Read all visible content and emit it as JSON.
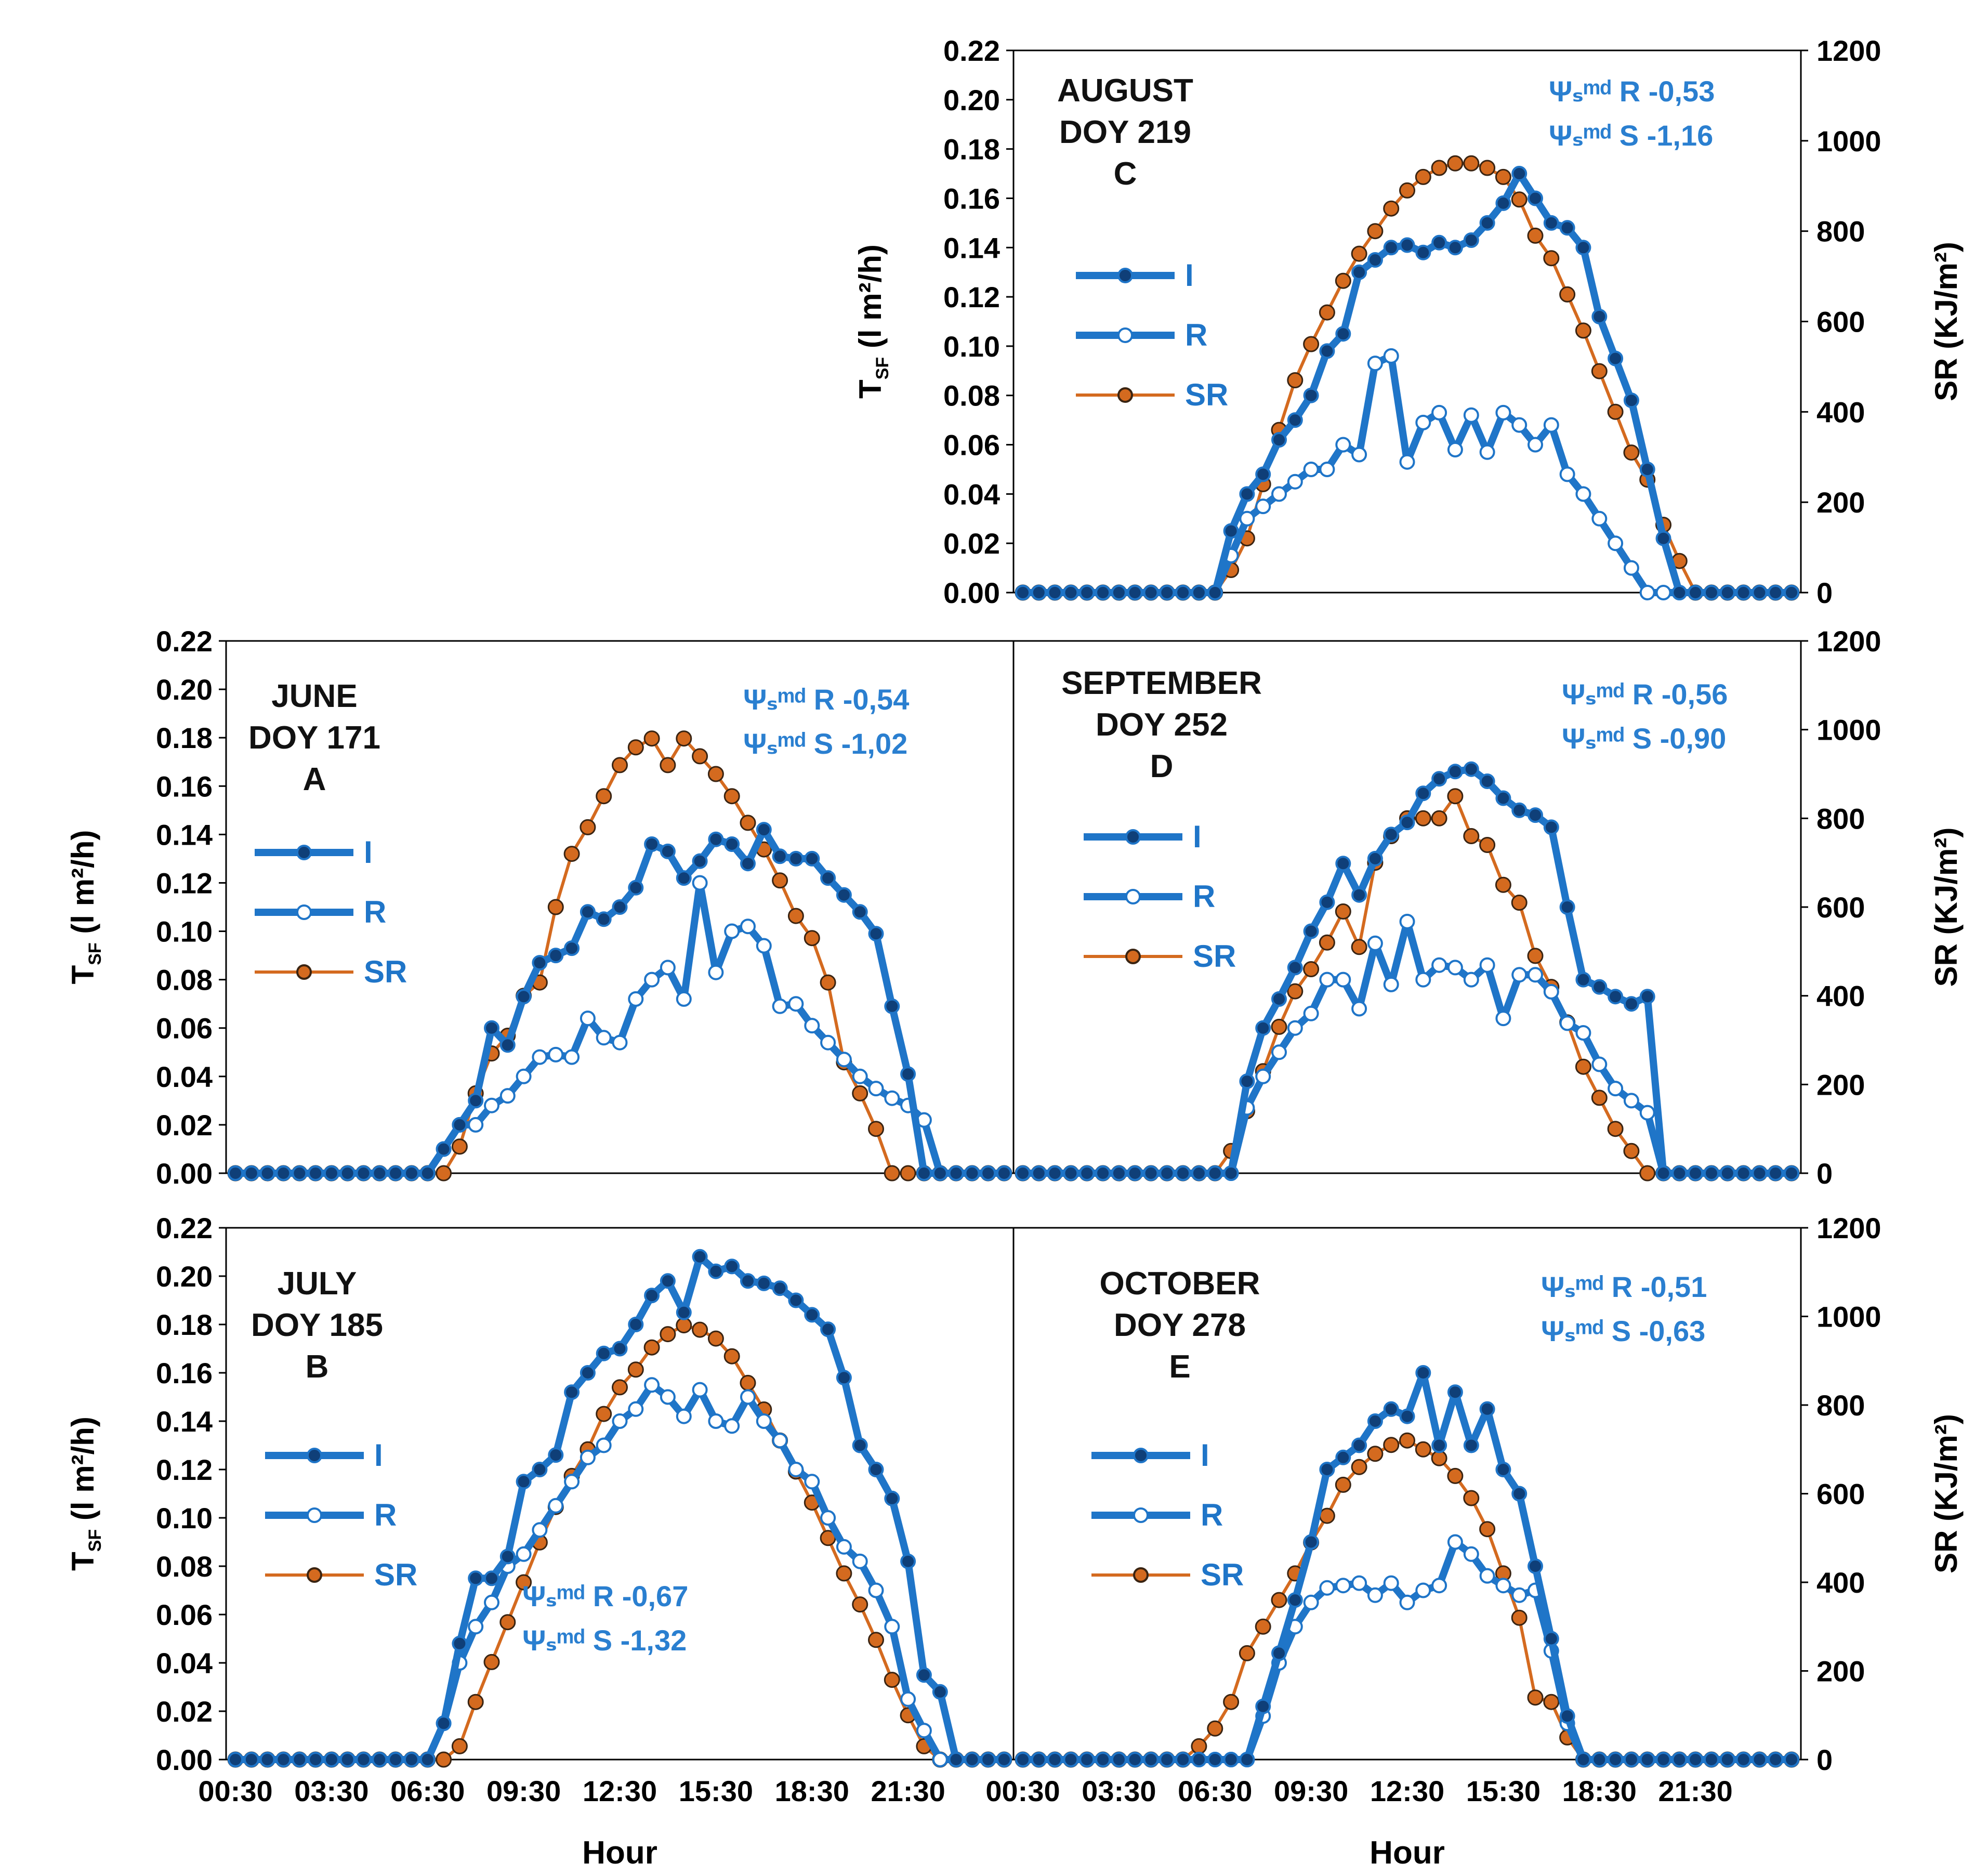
{
  "figure": {
    "x_axis_label": "Hour",
    "left_axis_label_main": "T",
    "left_axis_label_sub": "SF",
    "left_axis_label_units": " (l m²/h)",
    "right_axis_label": "SR (KJ/m²)",
    "legend": [
      {
        "key": "I",
        "label": "I"
      },
      {
        "key": "R",
        "label": "R"
      },
      {
        "key": "SR",
        "label": "SR"
      }
    ],
    "colors": {
      "I": "#1f75c8",
      "R": "#1f75c8",
      "SR": "#d46a1f",
      "annotation": "#2a7fd0"
    }
  },
  "chart_data": [
    {
      "id": "A",
      "type": "line",
      "title_lines": [
        "JUNE",
        "DOY 171",
        "A"
      ],
      "annotation_lines": [
        "Ψₛᵐᵈ R -0,54",
        "Ψₛᵐᵈ S -1,02"
      ],
      "x_tick_labels": [],
      "ylim_left": [
        0,
        0.22
      ],
      "yticks_left": [
        "0.00",
        "0.02",
        "0.04",
        "0.06",
        "0.08",
        "0.10",
        "0.12",
        "0.14",
        "0.16",
        "0.18",
        "0.20",
        "0.22"
      ],
      "ylim_right": [
        0,
        1200
      ],
      "yticks_right": [],
      "series": [
        {
          "name": "I",
          "axis": "left",
          "values": [
            0,
            0,
            0,
            0,
            0,
            0,
            0,
            0,
            0,
            0,
            0,
            0,
            0,
            0.01,
            0.02,
            0.03,
            0.06,
            0.053,
            0.073,
            0.087,
            0.09,
            0.093,
            0.108,
            0.105,
            0.11,
            0.118,
            0.136,
            0.133,
            0.122,
            0.129,
            0.138,
            0.136,
            0.128,
            0.142,
            0.131,
            0.13,
            0.13,
            0.122,
            0.115,
            0.108,
            0.099,
            0.069,
            0.041,
            0,
            0,
            0,
            0,
            0,
            0
          ]
        },
        {
          "name": "R",
          "axis": "left",
          "values": [
            0,
            0,
            0,
            0,
            0,
            0,
            0,
            0,
            0,
            0,
            0,
            0,
            0,
            0.01,
            0.02,
            0.02,
            0.028,
            0.032,
            0.04,
            0.048,
            0.049,
            0.048,
            0.064,
            0.056,
            0.054,
            0.072,
            0.08,
            0.085,
            0.072,
            0.12,
            0.083,
            0.1,
            0.102,
            0.094,
            0.069,
            0.07,
            0.061,
            0.054,
            0.047,
            0.04,
            0.035,
            0.031,
            0.028,
            0.022,
            0,
            0,
            0,
            0,
            0
          ]
        },
        {
          "name": "SR",
          "axis": "right",
          "values": [
            0,
            0,
            0,
            0,
            0,
            0,
            0,
            0,
            0,
            0,
            0,
            0,
            0,
            0,
            60,
            180,
            270,
            310,
            400,
            430,
            600,
            720,
            780,
            850,
            920,
            960,
            980,
            920,
            980,
            940,
            900,
            850,
            790,
            730,
            660,
            580,
            530,
            430,
            250,
            180,
            100,
            0,
            0,
            0,
            0,
            0,
            0,
            0,
            0
          ]
        }
      ]
    },
    {
      "id": "B",
      "type": "line",
      "title_lines": [
        "JULY",
        "DOY 185",
        "B"
      ],
      "annotation_lines": [
        "Ψₛᵐᵈ R -0,67",
        "Ψₛᵐᵈ S -1,32"
      ],
      "x_tick_labels": [
        "00:30",
        "03:30",
        "06:30",
        "09:30",
        "12:30",
        "15:30",
        "18:30",
        "21:30"
      ],
      "ylim_left": [
        0,
        0.22
      ],
      "yticks_left": [
        "0.00",
        "0.02",
        "0.04",
        "0.06",
        "0.08",
        "0.10",
        "0.12",
        "0.14",
        "0.16",
        "0.18",
        "0.20",
        "0.22"
      ],
      "ylim_right": [
        0,
        1200
      ],
      "yticks_right": [],
      "series": [
        {
          "name": "I",
          "axis": "left",
          "values": [
            0,
            0,
            0,
            0,
            0,
            0,
            0,
            0,
            0,
            0,
            0,
            0,
            0,
            0.015,
            0.048,
            0.075,
            0.075,
            0.084,
            0.115,
            0.12,
            0.126,
            0.152,
            0.16,
            0.168,
            0.17,
            0.18,
            0.192,
            0.198,
            0.185,
            0.208,
            0.202,
            0.204,
            0.198,
            0.197,
            0.195,
            0.19,
            0.184,
            0.178,
            0.158,
            0.13,
            0.12,
            0.108,
            0.082,
            0.035,
            0.028,
            0,
            0,
            0,
            0
          ]
        },
        {
          "name": "R",
          "axis": "left",
          "values": [
            0,
            0,
            0,
            0,
            0,
            0,
            0,
            0,
            0,
            0,
            0,
            0,
            0,
            0.015,
            0.04,
            0.055,
            0.065,
            0.08,
            0.085,
            0.095,
            0.105,
            0.115,
            0.125,
            0.13,
            0.14,
            0.145,
            0.155,
            0.15,
            0.142,
            0.153,
            0.14,
            0.138,
            0.15,
            0.14,
            0.132,
            0.12,
            0.115,
            0.1,
            0.088,
            0.082,
            0.07,
            0.055,
            0.025,
            0.012,
            0,
            0,
            0,
            0,
            0
          ]
        },
        {
          "name": "SR",
          "axis": "right",
          "values": [
            0,
            0,
            0,
            0,
            0,
            0,
            0,
            0,
            0,
            0,
            0,
            0,
            0,
            0,
            30,
            130,
            220,
            310,
            400,
            490,
            570,
            640,
            700,
            780,
            840,
            880,
            930,
            960,
            980,
            970,
            950,
            910,
            850,
            790,
            720,
            650,
            580,
            500,
            420,
            350,
            270,
            180,
            100,
            30,
            0,
            0,
            0,
            0,
            0
          ]
        }
      ]
    },
    {
      "id": "C",
      "type": "line",
      "title_lines": [
        "AUGUST",
        "DOY 219",
        "C"
      ],
      "annotation_lines": [
        "Ψₛᵐᵈ R -0,53",
        "Ψₛᵐᵈ S -1,16"
      ],
      "x_tick_labels": [],
      "ylim_left": [
        0,
        0.22
      ],
      "yticks_left": [
        "0.00",
        "0.02",
        "0.04",
        "0.06",
        "0.08",
        "0.10",
        "0.12",
        "0.14",
        "0.16",
        "0.18",
        "0.20",
        "0.22"
      ],
      "ylim_right": [
        0,
        1200
      ],
      "yticks_right": [
        "0",
        "200",
        "400",
        "600",
        "800",
        "1000",
        "1200"
      ],
      "series": [
        {
          "name": "I",
          "axis": "left",
          "values": [
            0,
            0,
            0,
            0,
            0,
            0,
            0,
            0,
            0,
            0,
            0,
            0,
            0,
            0.025,
            0.04,
            0.048,
            0.062,
            0.07,
            0.08,
            0.098,
            0.105,
            0.13,
            0.135,
            0.14,
            0.141,
            0.138,
            0.142,
            0.14,
            0.143,
            0.15,
            0.158,
            0.17,
            0.16,
            0.15,
            0.148,
            0.14,
            0.112,
            0.095,
            0.078,
            0.05,
            0.022,
            0,
            0,
            0,
            0,
            0,
            0,
            0,
            0
          ]
        },
        {
          "name": "R",
          "axis": "left",
          "values": [
            0,
            0,
            0,
            0,
            0,
            0,
            0,
            0,
            0,
            0,
            0,
            0,
            0,
            0.015,
            0.03,
            0.035,
            0.04,
            0.045,
            0.05,
            0.05,
            0.06,
            0.056,
            0.093,
            0.096,
            0.053,
            0.069,
            0.073,
            0.058,
            0.072,
            0.057,
            0.073,
            0.068,
            0.06,
            0.068,
            0.048,
            0.04,
            0.03,
            0.02,
            0.01,
            0,
            0,
            0,
            0,
            0,
            0,
            0,
            0,
            0,
            0
          ]
        },
        {
          "name": "SR",
          "axis": "right",
          "values": [
            0,
            0,
            0,
            0,
            0,
            0,
            0,
            0,
            0,
            0,
            0,
            0,
            0,
            50,
            120,
            240,
            360,
            470,
            550,
            620,
            690,
            750,
            800,
            850,
            890,
            920,
            940,
            950,
            950,
            940,
            920,
            870,
            790,
            740,
            660,
            580,
            490,
            400,
            310,
            250,
            150,
            70,
            0,
            0,
            0,
            0,
            0,
            0,
            0
          ]
        }
      ]
    },
    {
      "id": "D",
      "type": "line",
      "title_lines": [
        "SEPTEMBER",
        "DOY 252",
        "D"
      ],
      "annotation_lines": [
        "Ψₛᵐᵈ R -0,56",
        "Ψₛᵐᵈ S -0,90"
      ],
      "x_tick_labels": [],
      "ylim_left": [
        0,
        0.22
      ],
      "yticks_left": [],
      "ylim_right": [
        0,
        1200
      ],
      "yticks_right": [
        "0",
        "200",
        "400",
        "600",
        "800",
        "1000",
        "1200"
      ],
      "series": [
        {
          "name": "I",
          "axis": "left",
          "values": [
            0,
            0,
            0,
            0,
            0,
            0,
            0,
            0,
            0,
            0,
            0,
            0,
            0,
            0,
            0.038,
            0.06,
            0.072,
            0.085,
            0.1,
            0.112,
            0.128,
            0.115,
            0.13,
            0.14,
            0.145,
            0.157,
            0.163,
            0.166,
            0.167,
            0.162,
            0.155,
            0.15,
            0.148,
            0.143,
            0.11,
            0.08,
            0.077,
            0.073,
            0.07,
            0.073,
            0,
            0,
            0,
            0,
            0,
            0,
            0,
            0,
            0
          ]
        },
        {
          "name": "R",
          "axis": "left",
          "values": [
            0,
            0,
            0,
            0,
            0,
            0,
            0,
            0,
            0,
            0,
            0,
            0,
            0,
            0,
            0.027,
            0.04,
            0.05,
            0.06,
            0.066,
            0.08,
            0.08,
            0.068,
            0.095,
            0.078,
            0.104,
            0.08,
            0.086,
            0.085,
            0.08,
            0.086,
            0.064,
            0.082,
            0.082,
            0.075,
            0.062,
            0.058,
            0.045,
            0.035,
            0.03,
            0.025,
            0,
            0,
            0,
            0,
            0,
            0,
            0,
            0,
            0
          ]
        },
        {
          "name": "SR",
          "axis": "right",
          "values": [
            0,
            0,
            0,
            0,
            0,
            0,
            0,
            0,
            0,
            0,
            0,
            0,
            0,
            50,
            140,
            230,
            330,
            410,
            460,
            520,
            590,
            510,
            700,
            760,
            800,
            800,
            800,
            850,
            760,
            740,
            650,
            610,
            490,
            420,
            340,
            240,
            170,
            100,
            50,
            0,
            0,
            0,
            0,
            0,
            0,
            0,
            0,
            0,
            0
          ]
        }
      ]
    },
    {
      "id": "E",
      "type": "line",
      "title_lines": [
        "OCTOBER",
        "DOY 278",
        "E"
      ],
      "annotation_lines": [
        "Ψₛᵐᵈ R -0,51",
        "Ψₛᵐᵈ S -0,63"
      ],
      "x_tick_labels": [
        "00:30",
        "03:30",
        "06:30",
        "09:30",
        "12:30",
        "15:30",
        "18:30",
        "21:30"
      ],
      "ylim_left": [
        0,
        0.22
      ],
      "yticks_left": [],
      "ylim_right": [
        0,
        1200
      ],
      "yticks_right": [
        "0",
        "200",
        "400",
        "600",
        "800",
        "1000",
        "1200"
      ],
      "series": [
        {
          "name": "I",
          "axis": "left",
          "values": [
            0,
            0,
            0,
            0,
            0,
            0,
            0,
            0,
            0,
            0,
            0,
            0,
            0,
            0,
            0,
            0.022,
            0.044,
            0.066,
            0.09,
            0.12,
            0.125,
            0.13,
            0.14,
            0.145,
            0.142,
            0.16,
            0.13,
            0.152,
            0.13,
            0.145,
            0.12,
            0.11,
            0.08,
            0.05,
            0.018,
            0,
            0,
            0,
            0,
            0,
            0,
            0,
            0,
            0,
            0,
            0,
            0,
            0,
            0
          ]
        },
        {
          "name": "R",
          "axis": "left",
          "values": [
            0,
            0,
            0,
            0,
            0,
            0,
            0,
            0,
            0,
            0,
            0,
            0,
            0,
            0,
            0,
            0.018,
            0.04,
            0.055,
            0.065,
            0.071,
            0.072,
            0.073,
            0.068,
            0.073,
            0.065,
            0.07,
            0.072,
            0.09,
            0.085,
            0.076,
            0.072,
            0.068,
            0.07,
            0.045,
            0.015,
            0,
            0,
            0,
            0,
            0,
            0,
            0,
            0,
            0,
            0,
            0,
            0,
            0,
            0
          ]
        },
        {
          "name": "SR",
          "axis": "right",
          "values": [
            0,
            0,
            0,
            0,
            0,
            0,
            0,
            0,
            0,
            0,
            0,
            30,
            70,
            130,
            240,
            300,
            360,
            420,
            490,
            550,
            620,
            660,
            690,
            710,
            720,
            700,
            680,
            640,
            590,
            520,
            420,
            320,
            140,
            130,
            50,
            0,
            0,
            0,
            0,
            0,
            0,
            0,
            0,
            0,
            0,
            0,
            0,
            0,
            0
          ]
        }
      ]
    }
  ]
}
